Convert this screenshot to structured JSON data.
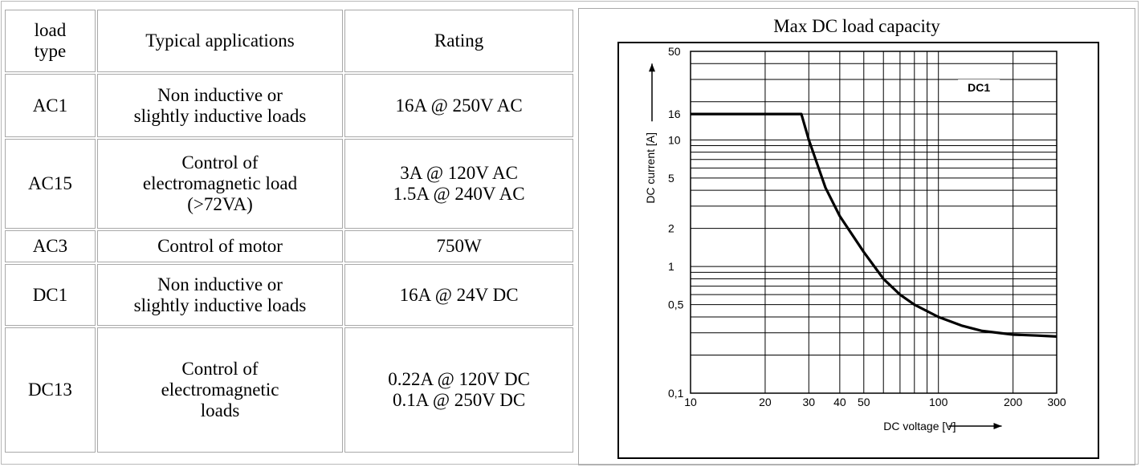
{
  "table": {
    "headers": [
      "load\ntype",
      "Typical applications",
      "Rating"
    ],
    "rows": [
      {
        "type": "AC1",
        "app": "Non inductive or\nslightly inductive loads",
        "rating": "16A @ 250V AC"
      },
      {
        "type": "AC15",
        "app": "Control of\nelectromagnetic load\n(>72VA)",
        "rating": "3A @ 120V AC\n1.5A @ 240V AC"
      },
      {
        "type": "AC3",
        "app": "Control of motor",
        "rating": "750W"
      },
      {
        "type": "DC1",
        "app": "Non inductive or\nslightly inductive loads",
        "rating": "16A @ 24V DC"
      },
      {
        "type": "DC13",
        "app": "Control of\nelectromagnetic\nloads",
        "rating": "0.22A @ 120V DC\n0.1A @ 250V DC"
      }
    ]
  },
  "chart_data": {
    "type": "line",
    "title": "Max DC load capacity",
    "xlabel": "DC voltage [V]",
    "ylabel": "DC current [A]",
    "x_scale": "log",
    "y_scale": "log",
    "xlim": [
      10,
      300
    ],
    "ylim": [
      0.1,
      50
    ],
    "x_ticks": [
      10,
      20,
      30,
      40,
      50,
      100,
      200,
      300
    ],
    "x_tick_labels": [
      "10",
      "20",
      "30",
      "40",
      "50",
      "100",
      "200",
      "300"
    ],
    "y_ticks": [
      0.1,
      0.5,
      1,
      2,
      5,
      10,
      16,
      50
    ],
    "y_tick_labels": [
      "0,1",
      "0,5",
      "1",
      "2",
      "5",
      "10",
      "16",
      "50"
    ],
    "grid": true,
    "series": [
      {
        "name": "DC1",
        "x": [
          10,
          28,
          30,
          35,
          40,
          50,
          60,
          70,
          80,
          100,
          125,
          150,
          200,
          250,
          300
        ],
        "y": [
          16,
          16,
          10,
          4.2,
          2.5,
          1.3,
          0.8,
          0.6,
          0.5,
          0.4,
          0.34,
          0.31,
          0.29,
          0.285,
          0.28
        ]
      }
    ],
    "color": "#000000"
  }
}
